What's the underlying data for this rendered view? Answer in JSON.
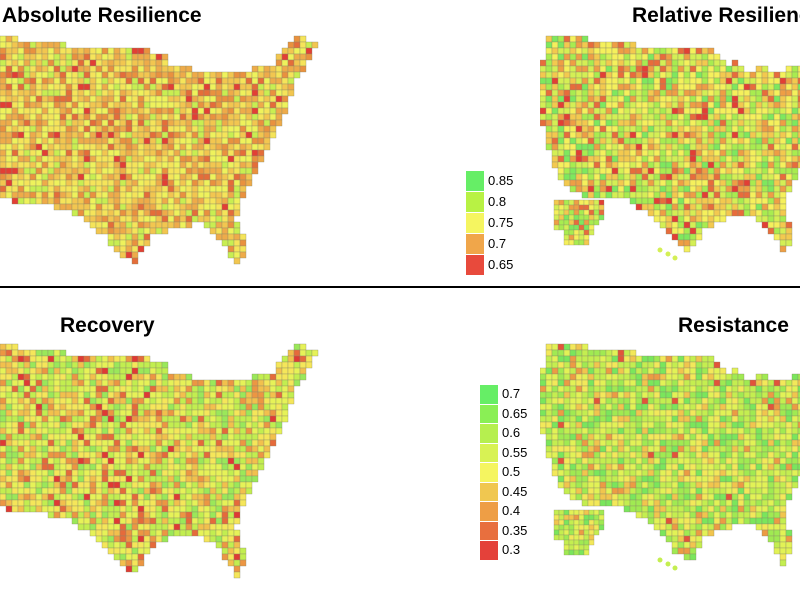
{
  "panels": [
    {
      "title": "Absolute Resilience"
    },
    {
      "title": "Relative Resilience"
    },
    {
      "title": "Recovery"
    },
    {
      "title": "Resistance"
    }
  ],
  "legend_top": {
    "entries": [
      {
        "label": "0.85",
        "color": "#66ee66"
      },
      {
        "label": "0.8",
        "color": "#b8f244"
      },
      {
        "label": "0.75",
        "color": "#f5f560"
      },
      {
        "label": "0.7",
        "color": "#f0a64a"
      },
      {
        "label": "0.65",
        "color": "#e84a3c"
      }
    ]
  },
  "legend_bottom": {
    "entries": [
      {
        "label": "0.7",
        "color": "#66ee66"
      },
      {
        "label": "0.65",
        "color": "#8aef55"
      },
      {
        "label": "0.6",
        "color": "#b6ef4f"
      },
      {
        "label": "0.55",
        "color": "#d8f254"
      },
      {
        "label": "0.5",
        "color": "#f5f560"
      },
      {
        "label": "0.45",
        "color": "#f0c750"
      },
      {
        "label": "0.4",
        "color": "#ee9e45"
      },
      {
        "label": "0.35",
        "color": "#e86f3e"
      },
      {
        "label": "0.3",
        "color": "#e4413a"
      }
    ]
  }
}
